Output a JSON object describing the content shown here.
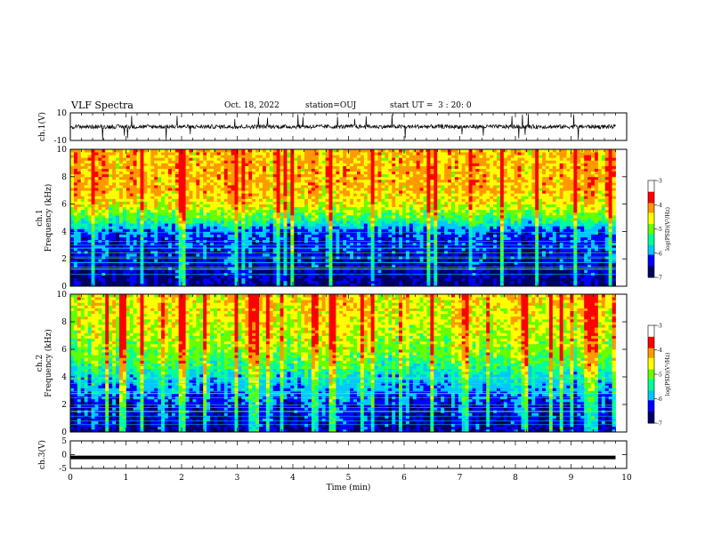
{
  "header": {
    "title": "VLF Spectra",
    "date": "Oct. 18, 2022",
    "station": "station=OUJ",
    "start_ut": "start UT =  3 : 20: 0"
  },
  "chart_data": [
    {
      "type": "line",
      "panel": "ch1-waveform",
      "ylabel": "ch.1(V)",
      "ylim": [
        -10,
        10
      ],
      "yticks": [
        "10",
        "-10"
      ],
      "x_range_min": [
        0,
        9.8
      ],
      "baseline_approx": 0,
      "color": "#000000"
    },
    {
      "type": "heatmap",
      "panel": "ch1-spectrogram",
      "ylabel_line1": "ch.1",
      "ylabel_line2": "Frequency (kHz)",
      "ylim": [
        0,
        10
      ],
      "yticks": [
        "0",
        "2",
        "4",
        "6",
        "8",
        "10"
      ],
      "x_range_min": [
        0,
        9.8
      ],
      "colorbar": {
        "label": "log(PSD)(V²/Hz)",
        "ticks": [
          "-3",
          "-4",
          "-5",
          "-6",
          "-7"
        ],
        "range": [
          -7,
          -3
        ]
      },
      "profile_khz_logpsd": [
        [
          0,
          -7
        ],
        [
          2,
          -6.6
        ],
        [
          4,
          -6.3
        ],
        [
          5,
          -5
        ],
        [
          6,
          -4.2
        ],
        [
          7,
          -3.8
        ],
        [
          10,
          -3.8
        ]
      ]
    },
    {
      "type": "heatmap",
      "panel": "ch2-spectrogram",
      "ylabel_line1": "ch.2",
      "ylabel_line2": "Frequency (kHz)",
      "ylim": [
        0,
        10
      ],
      "yticks": [
        "0",
        "2",
        "4",
        "6",
        "8",
        "10"
      ],
      "x_range_min": [
        0,
        9.8
      ],
      "colorbar": {
        "label": "log(PSD)(V²/Hz)",
        "ticks": [
          "-3",
          "-4",
          "-5",
          "-6",
          "-7"
        ],
        "range": [
          -7,
          -3
        ]
      },
      "profile_khz_logpsd": [
        [
          0,
          -6.8
        ],
        [
          2,
          -6.4
        ],
        [
          4,
          -5.6
        ],
        [
          5,
          -5
        ],
        [
          6,
          -4.6
        ],
        [
          8,
          -4.2
        ],
        [
          10,
          -4.0
        ]
      ]
    },
    {
      "type": "line",
      "panel": "ch3-waveform",
      "ylabel": "ch.3(V)",
      "ylim": [
        -5,
        5
      ],
      "yticks": [
        "5",
        "0",
        "-5"
      ],
      "x_range_min": [
        0,
        9.8
      ],
      "constant_value": -1,
      "color": "#000000",
      "xlabel": "Time (min)",
      "xlim": [
        0,
        10
      ],
      "xticks": [
        "0",
        "1",
        "2",
        "3",
        "4",
        "5",
        "6",
        "7",
        "8",
        "9",
        "10"
      ]
    }
  ],
  "colors": {
    "spectral_scale": [
      "#000066",
      "#0000ff",
      "#00c8ff",
      "#00ff99",
      "#66ff00",
      "#ffff00",
      "#ff9900",
      "#ff0000",
      "#ffffff"
    ]
  }
}
